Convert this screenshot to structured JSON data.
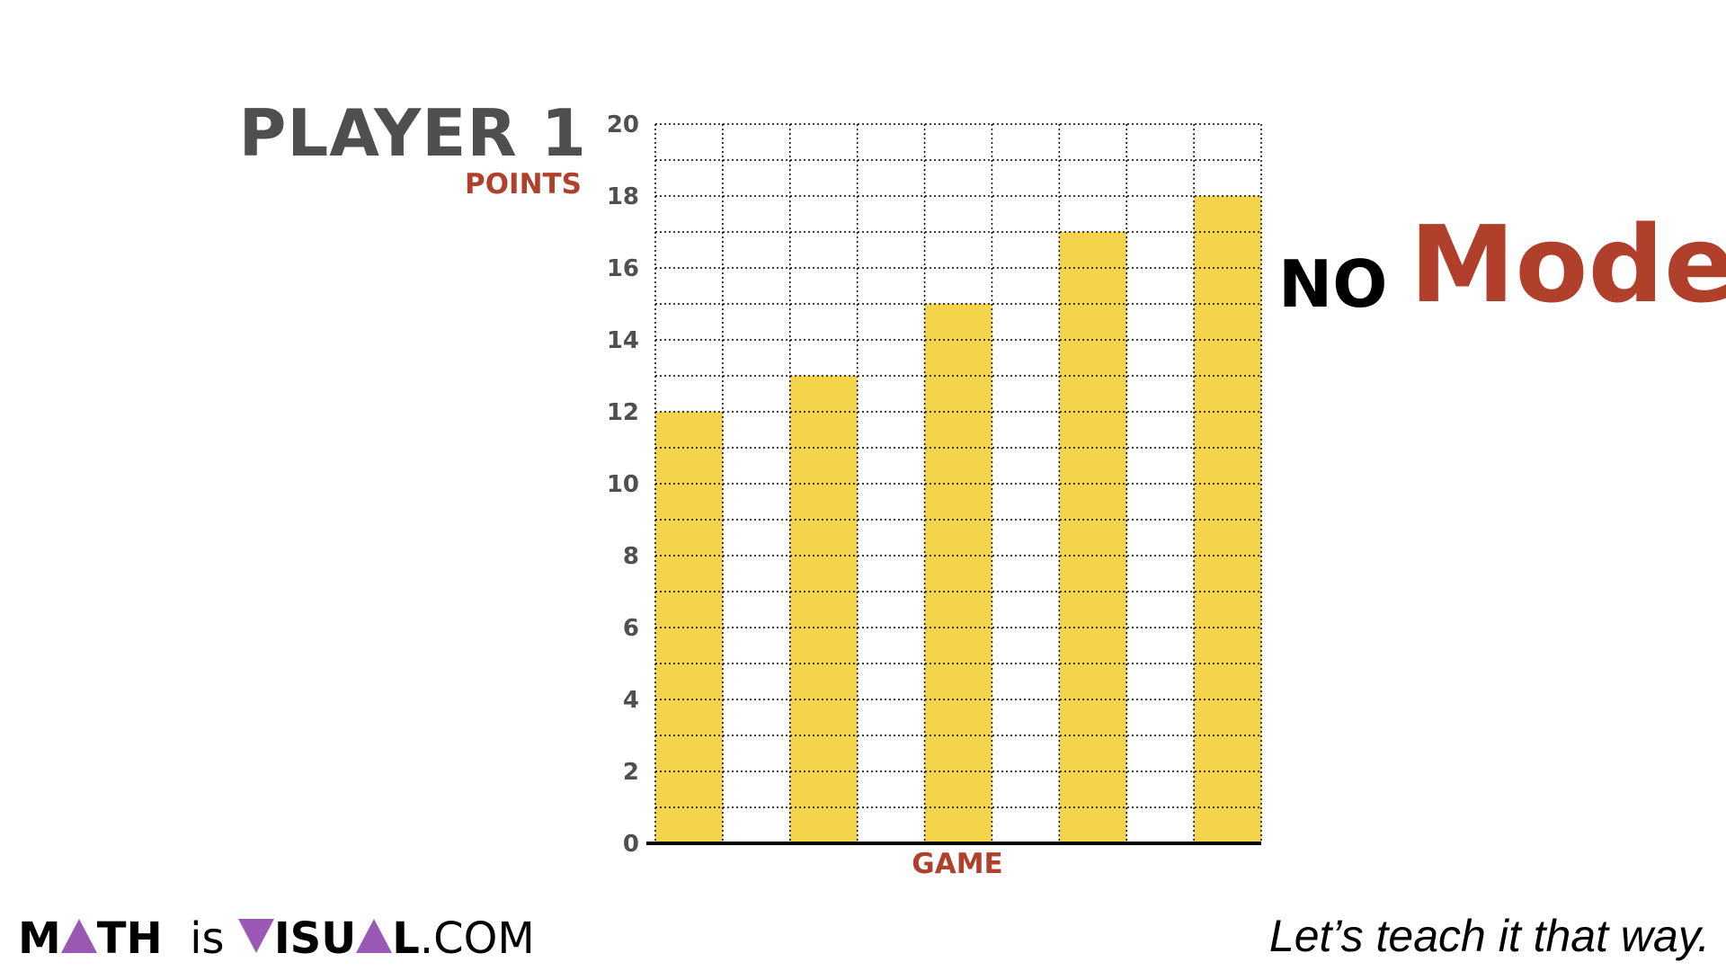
{
  "chart_data": {
    "type": "bar",
    "title": "PLAYER 1",
    "ylabel": "POINTS",
    "xlabel": "GAME",
    "categories": [
      "",
      "",
      "",
      "",
      ""
    ],
    "values": [
      12,
      13,
      15,
      17,
      18
    ],
    "ylim": [
      0,
      20
    ],
    "yticks": [
      0,
      2,
      4,
      6,
      8,
      10,
      12,
      14,
      16,
      18,
      20
    ],
    "grid": true,
    "bar_color": "#F4D44A",
    "annotation_no": "NO",
    "annotation_mode": "Mode"
  },
  "footer": {
    "logo_m": "M",
    "logo_th": "TH",
    "logo_is": "is",
    "logo_isu": "ISU",
    "logo_l": "L",
    "logo_com": ".COM",
    "tagline": "Let’s teach it that way."
  },
  "colors": {
    "accent": "#b0402b",
    "title": "#4f4f4f",
    "logo_purple": "#9b59b6"
  }
}
